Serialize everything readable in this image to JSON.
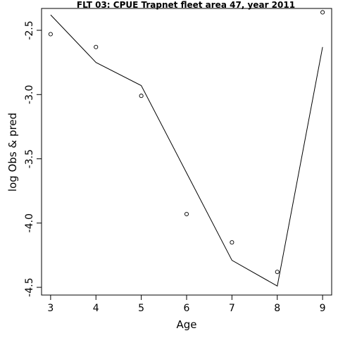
{
  "chart_data": {
    "type": "line",
    "title": "FLT 03: CPUE Trapnet fleet area 47, year 2011",
    "xlabel": "Age",
    "ylabel": "log Obs & pred",
    "xlim": [
      2.8,
      9.2
    ],
    "ylim": [
      -4.56,
      -2.33
    ],
    "x_ticks": [
      3,
      4,
      5,
      6,
      7,
      8,
      9
    ],
    "y_ticks": [
      -4.5,
      -4.0,
      -3.5,
      -3.0,
      -2.5
    ],
    "y_tick_labels": [
      "-4.5",
      "-4.0",
      "-3.5",
      "-3.0",
      "-2.5"
    ],
    "grid": false,
    "series": [
      {
        "kind": "line",
        "x": [
          3,
          4,
          5,
          6,
          7,
          8,
          9
        ],
        "y": [
          -2.38,
          -2.75,
          -2.93,
          -3.61,
          -4.29,
          -4.49,
          -2.63
        ]
      },
      {
        "kind": "points",
        "x": [
          3,
          4,
          5,
          6,
          7,
          8,
          9
        ],
        "y": [
          -2.53,
          -2.63,
          -3.01,
          -3.93,
          -4.15,
          -4.38,
          -2.36
        ]
      }
    ]
  }
}
